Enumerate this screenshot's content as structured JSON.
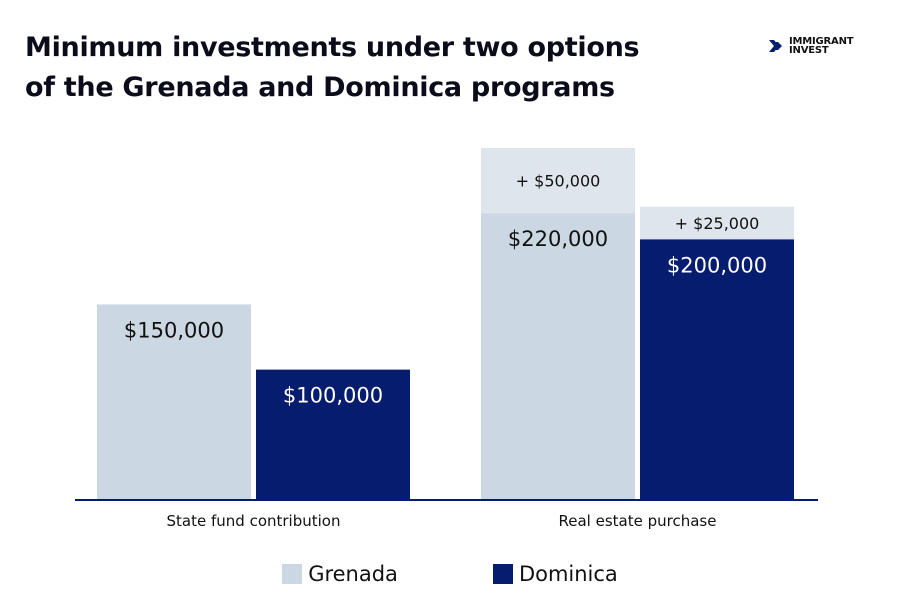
{
  "title_line1": "Minimum investments under two options",
  "title_line2": "of the Grenada and Dominica programs",
  "logo": {
    "line1": "IMMIGRANT",
    "line2": "INVEST"
  },
  "colors": {
    "grenada": "#CBD8E3",
    "dominica": "#061C6E",
    "extra": "#DEE5EC",
    "axis": "#061C6E"
  },
  "chart_data": {
    "type": "bar",
    "stacked": true,
    "categories": [
      "State fund contribution",
      "Real estate purchase"
    ],
    "series": [
      {
        "name": "Grenada",
        "values": [
          150000,
          220000
        ],
        "labels": [
          "$150,000",
          "$220,000"
        ],
        "extra": [
          0,
          50000
        ],
        "extra_labels": [
          "",
          "+ $50,000"
        ]
      },
      {
        "name": "Dominica",
        "values": [
          100000,
          200000
        ],
        "labels": [
          "$100,000",
          "$200,000"
        ],
        "extra": [
          0,
          25000
        ],
        "extra_labels": [
          "",
          "+ $25,000"
        ]
      }
    ],
    "legend_position": "bottom",
    "grid": false
  }
}
